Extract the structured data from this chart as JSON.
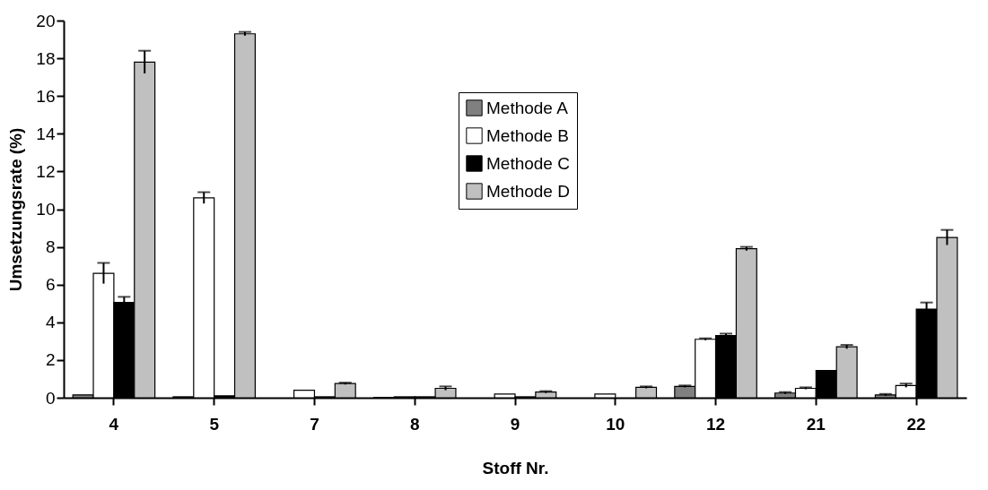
{
  "chart_data": {
    "type": "bar",
    "xlabel": "Stoff Nr.",
    "ylabel": "Umsetzungsrate (%)",
    "categories": [
      "4",
      "5",
      "7",
      "8",
      "9",
      "10",
      "12",
      "21",
      "22"
    ],
    "series": [
      {
        "name": "Methode A",
        "color": "#808080",
        "values": [
          0.15,
          0.05,
          0,
          0.02,
          0,
          0,
          0.6,
          0.25,
          0.15
        ],
        "errors": [
          null,
          null,
          null,
          null,
          null,
          null,
          0.05,
          0.05,
          0.05
        ]
      },
      {
        "name": "Methode B",
        "color": "#ffffff",
        "values": [
          6.6,
          10.6,
          0.4,
          0.05,
          0.2,
          0.2,
          3.1,
          0.5,
          0.65
        ],
        "errors": [
          0.55,
          0.3,
          null,
          null,
          null,
          null,
          0.05,
          0.05,
          0.1
        ]
      },
      {
        "name": "Methode C",
        "color": "#000000",
        "values": [
          5.05,
          0.1,
          0.05,
          0.05,
          0.05,
          0,
          3.3,
          1.45,
          4.7
        ],
        "errors": [
          0.3,
          null,
          null,
          null,
          null,
          null,
          0.1,
          null,
          0.35
        ]
      },
      {
        "name": "Methode D",
        "color": "#c0c0c0",
        "values": [
          17.8,
          19.3,
          0.75,
          0.5,
          0.3,
          0.55,
          7.9,
          2.7,
          8.5
        ],
        "errors": [
          0.6,
          0.1,
          0.05,
          0.1,
          0.05,
          0.05,
          0.1,
          0.1,
          0.4
        ]
      }
    ],
    "ylim": [
      0,
      20
    ],
    "yticks": [
      0,
      2,
      4,
      6,
      8,
      10,
      12,
      14,
      16,
      18,
      20
    ],
    "grid": false,
    "legend": "top"
  }
}
